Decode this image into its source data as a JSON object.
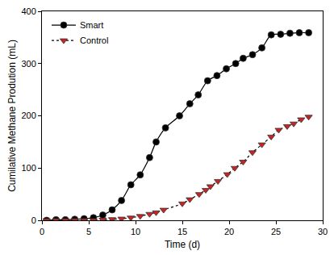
{
  "chart_data": {
    "type": "scatter",
    "x_label": "Time (d)",
    "y_label": "Cumilative Methane Prodution (mL)",
    "xlim": [
      0,
      30
    ],
    "xticks": [
      0,
      5,
      10,
      15,
      20,
      25,
      30
    ],
    "ylim": [
      0,
      400
    ],
    "yticks": [
      0,
      100,
      200,
      300,
      400
    ],
    "grid": false,
    "legend": "top-left",
    "series": [
      {
        "name": "Smart",
        "color": "#000000",
        "marker": "circle",
        "line_style": "solid",
        "x": [
          0.5,
          1.5,
          2.5,
          3.5,
          4.5,
          5.5,
          6.5,
          7.5,
          8.5,
          9.5,
          10.5,
          11.5,
          12.2,
          13.2,
          14.7,
          15.8,
          16.7,
          17.7,
          18.7,
          19.7,
          20.7,
          21.5,
          22.5,
          23.5,
          24.5,
          25.5,
          26.5,
          27.5,
          28.5
        ],
        "values": [
          0,
          1,
          1,
          2,
          3,
          5,
          10,
          20,
          38,
          68,
          87,
          120,
          150,
          177,
          200,
          223,
          240,
          267,
          277,
          290,
          300,
          310,
          317,
          330,
          355,
          356,
          358,
          359,
          359
        ]
      },
      {
        "name": "Control",
        "color": "#cc2222",
        "marker": "triangle-down",
        "line_style": "dotted",
        "x": [
          0.5,
          1.5,
          2.5,
          3.5,
          4.5,
          5.5,
          6.5,
          7.5,
          8.5,
          9.5,
          10.5,
          11.5,
          12.2,
          13,
          15,
          15.8,
          16.8,
          17.5,
          18,
          18.8,
          19.8,
          20.6,
          21.5,
          22.5,
          23.5,
          24.5,
          25.3,
          26.2,
          26.9,
          27.7,
          28.5
        ],
        "values": [
          0,
          0,
          0,
          0,
          0,
          0,
          1,
          2,
          3,
          5,
          8,
          12,
          15,
          20,
          32,
          40,
          50,
          58,
          65,
          75,
          88,
          100,
          112,
          130,
          145,
          160,
          173,
          180,
          185,
          193,
          198
        ]
      }
    ]
  }
}
